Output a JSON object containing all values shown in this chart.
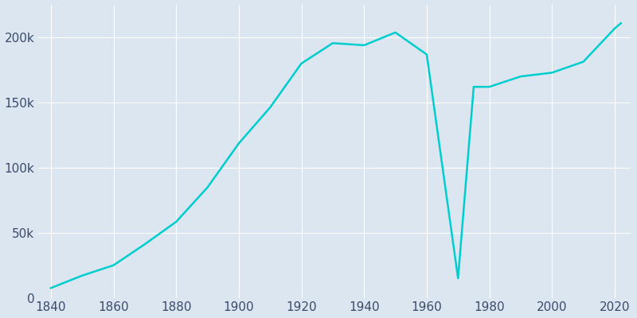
{
  "years": [
    1840,
    1850,
    1860,
    1870,
    1880,
    1890,
    1900,
    1910,
    1920,
    1930,
    1940,
    1950,
    1960,
    1970,
    1975,
    1980,
    1990,
    2000,
    2010,
    2020,
    2022
  ],
  "population": [
    7497,
    17049,
    24960,
    41105,
    58291,
    84655,
    118421,
    145986,
    179754,
    195311,
    193694,
    203486,
    186587,
    15000,
    161799,
    161799,
    169759,
    172648,
    181045,
    206518,
    210565
  ],
  "line_color": "#00CDCD",
  "bg_color": "#dce6f0",
  "xlim": [
    1836,
    2025
  ],
  "ylim": [
    0,
    225000
  ],
  "xticks": [
    1840,
    1860,
    1880,
    1900,
    1920,
    1940,
    1960,
    1980,
    2000,
    2020
  ],
  "ytick_vals": [
    0,
    50000,
    100000,
    150000,
    200000
  ],
  "ytick_labels": [
    "0",
    "50k",
    "100k",
    "150k",
    "200k"
  ],
  "tick_color": "#3a4a6b",
  "grid_color": "#ffffff",
  "line_width": 1.8
}
